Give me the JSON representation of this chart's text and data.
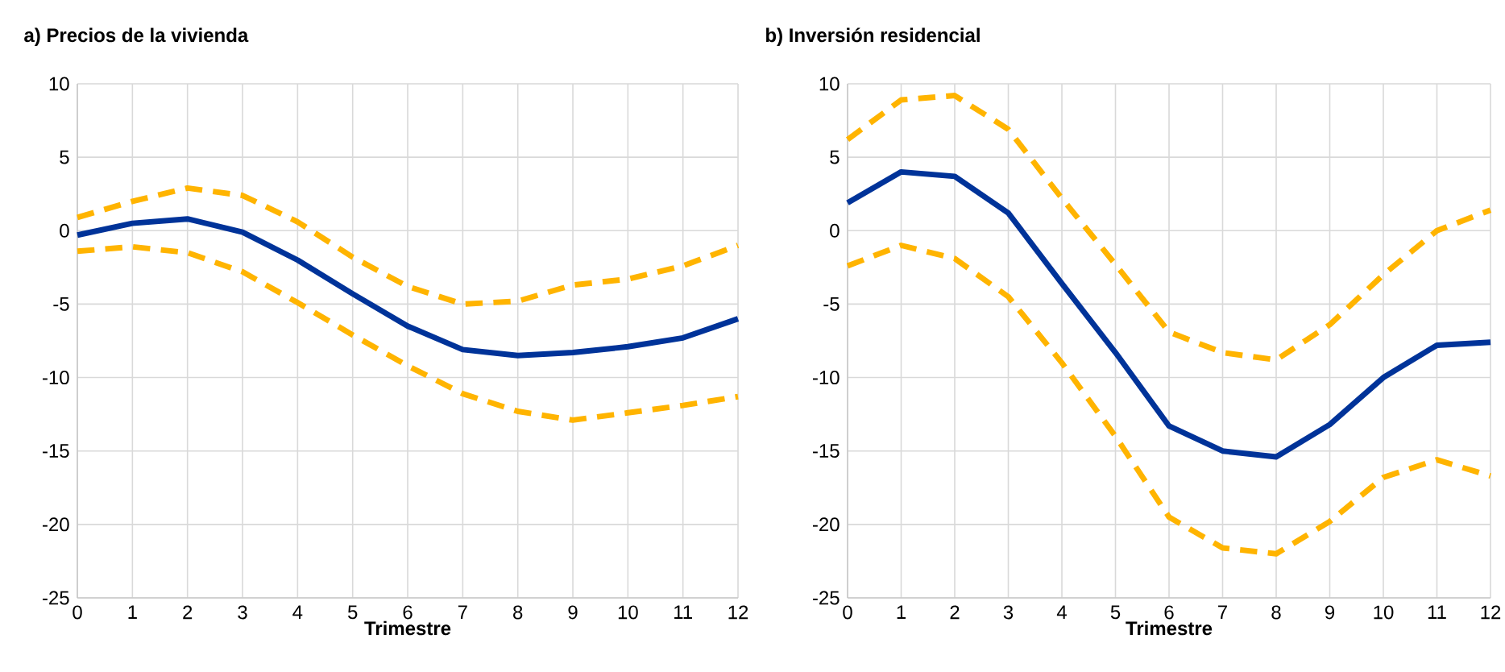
{
  "chart_data": [
    {
      "type": "line",
      "title": "a) Precios de la vivienda",
      "xlabel": "Trimestre",
      "x": [
        0,
        1,
        2,
        3,
        4,
        5,
        6,
        7,
        8,
        9,
        10,
        11,
        12
      ],
      "xlim": [
        0,
        12
      ],
      "xticks": [
        0,
        1,
        2,
        3,
        4,
        5,
        6,
        7,
        8,
        9,
        10,
        11,
        12
      ],
      "ylim": [
        -25,
        10
      ],
      "yticks": [
        -25,
        -20,
        -15,
        -10,
        -5,
        0,
        5,
        10
      ],
      "grid": true,
      "series": [
        {
          "color": "#ffb400",
          "line_style": "dashed",
          "values": [
            0.9,
            2.0,
            2.9,
            2.4,
            0.6,
            -1.8,
            -3.8,
            -5.0,
            -4.8,
            -3.7,
            -3.3,
            -2.4,
            -1.0
          ]
        },
        {
          "color": "#ffb400",
          "line_style": "dashed",
          "values": [
            -1.4,
            -1.1,
            -1.5,
            -2.8,
            -4.9,
            -7.1,
            -9.2,
            -11.1,
            -12.3,
            -12.9,
            -12.4,
            -11.9,
            -11.3
          ]
        },
        {
          "color": "#003399",
          "line_style": "solid",
          "values": [
            -0.3,
            0.5,
            0.8,
            -0.1,
            -2.0,
            -4.3,
            -6.5,
            -8.1,
            -8.5,
            -8.3,
            -7.9,
            -7.3,
            -6.0
          ]
        }
      ]
    },
    {
      "type": "line",
      "title": "b) Inversión residencial",
      "xlabel": "Trimestre",
      "x": [
        0,
        1,
        2,
        3,
        4,
        5,
        6,
        7,
        8,
        9,
        10,
        11,
        12
      ],
      "xlim": [
        0,
        12
      ],
      "xticks": [
        0,
        1,
        2,
        3,
        4,
        5,
        6,
        7,
        8,
        9,
        10,
        11,
        12
      ],
      "ylim": [
        -25,
        10
      ],
      "yticks": [
        -25,
        -20,
        -15,
        -10,
        -5,
        0,
        5,
        10
      ],
      "grid": true,
      "series": [
        {
          "color": "#ffb400",
          "line_style": "dashed",
          "values": [
            6.2,
            8.9,
            9.2,
            6.9,
            2.2,
            -2.3,
            -6.9,
            -8.3,
            -8.8,
            -6.4,
            -3.0,
            0.0,
            1.4
          ]
        },
        {
          "color": "#ffb400",
          "line_style": "dashed",
          "values": [
            -2.4,
            -1.0,
            -1.9,
            -4.5,
            -9.0,
            -14.0,
            -19.5,
            -21.6,
            -22.0,
            -19.8,
            -16.8,
            -15.6,
            -16.7
          ]
        },
        {
          "color": "#003399",
          "line_style": "solid",
          "values": [
            1.9,
            4.0,
            3.7,
            1.2,
            -3.6,
            -8.3,
            -13.3,
            -15.0,
            -15.4,
            -13.2,
            -10.0,
            -7.8,
            -7.6
          ]
        }
      ]
    }
  ]
}
